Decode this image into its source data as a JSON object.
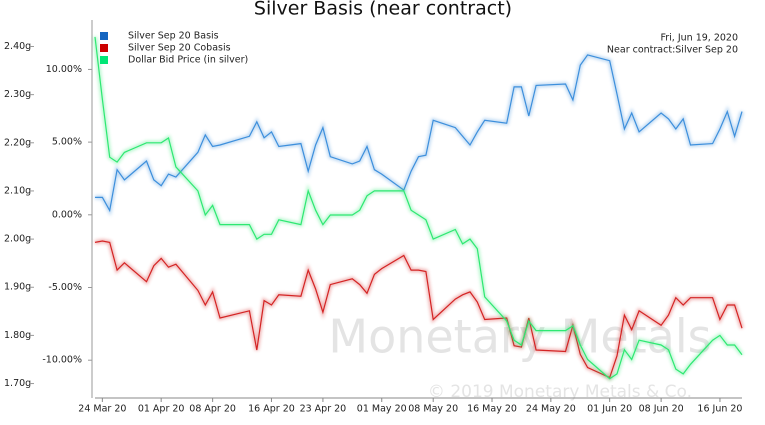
{
  "chart_data": {
    "type": "line",
    "title": "Silver Basis (near contract)",
    "annotations": [
      "Fri, Jun 19, 2020",
      "Near contract:Silver Sep 20"
    ],
    "watermark": [
      "Monetary Metals",
      "© 2019 Monetary Metals & Co."
    ],
    "x": [
      "2020-03-23",
      "2020-03-24",
      "2020-03-25",
      "2020-03-26",
      "2020-03-27",
      "2020-03-30",
      "2020-03-31",
      "2020-04-01",
      "2020-04-02",
      "2020-04-03",
      "2020-04-06",
      "2020-04-07",
      "2020-04-08",
      "2020-04-09",
      "2020-04-13",
      "2020-04-14",
      "2020-04-15",
      "2020-04-16",
      "2020-04-17",
      "2020-04-20",
      "2020-04-21",
      "2020-04-22",
      "2020-04-23",
      "2020-04-24",
      "2020-04-27",
      "2020-04-28",
      "2020-04-29",
      "2020-04-30",
      "2020-05-01",
      "2020-05-04",
      "2020-05-05",
      "2020-05-06",
      "2020-05-07",
      "2020-05-08",
      "2020-05-11",
      "2020-05-12",
      "2020-05-13",
      "2020-05-14",
      "2020-05-15",
      "2020-05-18",
      "2020-05-19",
      "2020-05-20",
      "2020-05-21",
      "2020-05-22",
      "2020-05-26",
      "2020-05-27",
      "2020-05-28",
      "2020-05-29",
      "2020-06-01",
      "2020-06-02",
      "2020-06-03",
      "2020-06-04",
      "2020-06-05",
      "2020-06-08",
      "2020-06-09",
      "2020-06-10",
      "2020-06-11",
      "2020-06-12",
      "2020-06-15",
      "2020-06-16",
      "2020-06-17",
      "2020-06-18",
      "2020-06-19"
    ],
    "xlim": [
      "2020-03-23",
      "2020-06-19"
    ],
    "xticks": [
      {
        "value": "2020-03-24",
        "label": "24 Mar 20"
      },
      {
        "value": "2020-04-01",
        "label": "01 Apr 20"
      },
      {
        "value": "2020-04-08",
        "label": "08 Apr 20"
      },
      {
        "value": "2020-04-16",
        "label": "16 Apr 20"
      },
      {
        "value": "2020-04-23",
        "label": "23 Apr 20"
      },
      {
        "value": "2020-05-01",
        "label": "01 May 20"
      },
      {
        "value": "2020-05-08",
        "label": "08 May 20"
      },
      {
        "value": "2020-05-16",
        "label": "16 May 20"
      },
      {
        "value": "2020-05-24",
        "label": "24 May 20"
      },
      {
        "value": "2020-06-01",
        "label": "01 Jun 20"
      },
      {
        "value": "2020-06-08",
        "label": "08 Jun 20"
      },
      {
        "value": "2020-06-16",
        "label": "16 Jun 20"
      }
    ],
    "ylim": [
      -12.6,
      13.4
    ],
    "yticks": [
      {
        "value": 10,
        "label": "10.00%"
      },
      {
        "value": 5,
        "label": "5.00%"
      },
      {
        "value": 0,
        "label": "0.00%"
      },
      {
        "value": -5,
        "label": "-5.00%"
      },
      {
        "value": -10,
        "label": "-10.00%"
      }
    ],
    "y2lim": [
      1.67,
      2.455
    ],
    "y2ticks": [
      {
        "value": 2.4,
        "label": "2.40g"
      },
      {
        "value": 2.3,
        "label": "2.30g"
      },
      {
        "value": 2.2,
        "label": "2.20g"
      },
      {
        "value": 2.1,
        "label": "2.10g"
      },
      {
        "value": 2.0,
        "label": "2.00g"
      },
      {
        "value": 1.9,
        "label": "1.90g"
      },
      {
        "value": 1.8,
        "label": "1.80g"
      },
      {
        "value": 1.7,
        "label": "1.70g"
      }
    ],
    "legend": "top-left",
    "series": [
      {
        "name": "Silver Sep 20 Basis",
        "color": "#3d8fdc",
        "legend_color": "#1565c0",
        "values": [
          1.2,
          1.2,
          0.3,
          3.1,
          2.4,
          3.7,
          2.4,
          2.0,
          2.8,
          2.6,
          4.3,
          5.5,
          4.7,
          4.8,
          5.4,
          6.4,
          5.3,
          5.7,
          4.7,
          4.9,
          3.0,
          4.8,
          6.0,
          4.0,
          3.5,
          3.7,
          4.7,
          3.1,
          2.8,
          1.7,
          3.0,
          4.0,
          4.1,
          6.5,
          6.0,
          5.4,
          4.8,
          5.7,
          6.5,
          6.3,
          8.8,
          8.8,
          6.8,
          8.9,
          9.0,
          7.9,
          10.3,
          11.0,
          10.6,
          8.3,
          5.9,
          7.0,
          5.7,
          7.0,
          6.6,
          5.9,
          6.6,
          4.8,
          4.9,
          5.9,
          7.1,
          5.4,
          7.1
        ]
      },
      {
        "name": "Silver Sep 20 Cobasis",
        "color": "#d42424",
        "legend_color": "#cc0000",
        "values": [
          -1.9,
          -1.8,
          -1.9,
          -3.8,
          -3.3,
          -4.6,
          -3.5,
          -3.0,
          -3.6,
          -3.4,
          -5.2,
          -6.2,
          -5.3,
          -7.1,
          -6.6,
          -9.3,
          -5.9,
          -6.2,
          -5.5,
          -5.6,
          -3.8,
          -5.1,
          -6.7,
          -4.8,
          -4.4,
          -4.8,
          -5.4,
          -4.1,
          -3.7,
          -2.8,
          -3.8,
          -3.8,
          -3.9,
          -7.2,
          -5.8,
          -5.5,
          -5.3,
          -6.0,
          -7.2,
          -7.1,
          -9.0,
          -9.1,
          -7.1,
          -9.3,
          -9.4,
          -7.6,
          -9.6,
          -10.5,
          -11.2,
          -9.7,
          -6.9,
          -7.9,
          -6.6,
          -7.6,
          -6.9,
          -5.7,
          -6.2,
          -5.7,
          -5.7,
          -7.2,
          -6.2,
          -6.2,
          -7.8
        ]
      },
      {
        "name": "Dollar Bid Price (in silver)",
        "color": "#2ee872",
        "legend_color": "#00e676",
        "axis": "y2",
        "values": [
          2.42,
          2.29,
          2.17,
          2.16,
          2.18,
          2.2,
          2.2,
          2.2,
          2.21,
          2.15,
          2.1,
          2.05,
          2.07,
          2.03,
          2.03,
          2.0,
          2.01,
          2.01,
          2.04,
          2.03,
          2.1,
          2.06,
          2.03,
          2.05,
          2.05,
          2.06,
          2.09,
          2.1,
          2.1,
          2.1,
          2.06,
          2.05,
          2.04,
          2.0,
          2.02,
          1.99,
          2.0,
          1.98,
          1.88,
          1.83,
          1.79,
          1.78,
          1.83,
          1.81,
          1.81,
          1.82,
          1.78,
          1.75,
          1.71,
          1.72,
          1.77,
          1.75,
          1.79,
          1.78,
          1.77,
          1.73,
          1.72,
          1.74,
          1.79,
          1.8,
          1.78,
          1.78,
          1.76
        ]
      }
    ]
  }
}
